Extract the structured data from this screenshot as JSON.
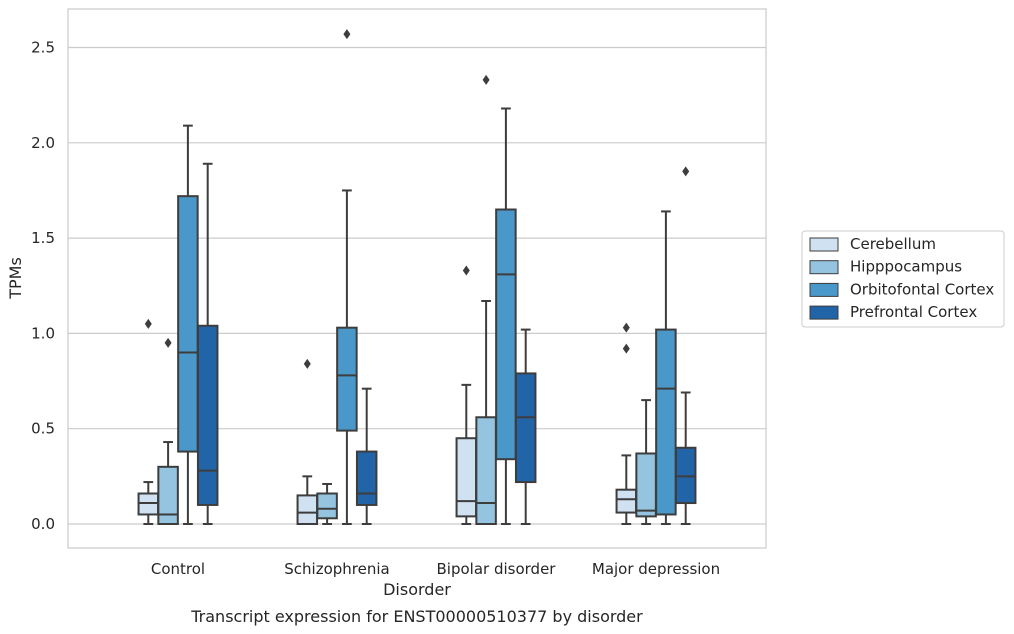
{
  "chart_data": {
    "type": "box",
    "title": "",
    "caption": "Transcript expression for ENST00000510377 by disorder",
    "xlabel": "Disorder",
    "ylabel": "TPMs",
    "ylim": [
      -0.13,
      2.7
    ],
    "yticks": [
      "0.0",
      "0.5",
      "1.0",
      "1.5",
      "2.0",
      "2.5"
    ],
    "yticks_values": [
      0.0,
      0.5,
      1.0,
      1.5,
      2.0,
      2.5
    ],
    "grid": "horizontal",
    "legend_position": "right",
    "categories": [
      "Control",
      "Schizophrenia",
      "Bipolar disorder",
      "Major depression"
    ],
    "series": [
      {
        "name": "Cerebellum",
        "color": "#d0e1f2",
        "boxes": [
          {
            "whislo": 0.0,
            "q1": 0.05,
            "med": 0.11,
            "q3": 0.16,
            "whishi": 0.22,
            "fliers": [
              1.05
            ]
          },
          {
            "whislo": 0.0,
            "q1": 0.0,
            "med": 0.06,
            "q3": 0.15,
            "whishi": 0.25,
            "fliers": [
              0.84
            ]
          },
          {
            "whislo": 0.0,
            "q1": 0.04,
            "med": 0.12,
            "q3": 0.45,
            "whishi": 0.73,
            "fliers": [
              1.33
            ]
          },
          {
            "whislo": 0.0,
            "q1": 0.06,
            "med": 0.13,
            "q3": 0.18,
            "whishi": 0.36,
            "fliers": [
              0.92,
              1.03
            ]
          }
        ]
      },
      {
        "name": "Hipppocampus",
        "color": "#94c4df",
        "boxes": [
          {
            "whislo": 0.0,
            "q1": 0.0,
            "med": 0.05,
            "q3": 0.3,
            "whishi": 0.43,
            "fliers": [
              0.95
            ]
          },
          {
            "whislo": 0.0,
            "q1": 0.03,
            "med": 0.08,
            "q3": 0.16,
            "whishi": 0.21,
            "fliers": []
          },
          {
            "whislo": 0.0,
            "q1": 0.0,
            "med": 0.11,
            "q3": 0.56,
            "whishi": 1.17,
            "fliers": [
              2.33
            ]
          },
          {
            "whislo": 0.0,
            "q1": 0.04,
            "med": 0.07,
            "q3": 0.37,
            "whishi": 0.65,
            "fliers": []
          }
        ]
      },
      {
        "name": "Orbitofontal Cortex",
        "color": "#4a98c9",
        "boxes": [
          {
            "whislo": 0.0,
            "q1": 0.38,
            "med": 0.9,
            "q3": 1.72,
            "whishi": 2.09,
            "fliers": []
          },
          {
            "whislo": 0.0,
            "q1": 0.49,
            "med": 0.78,
            "q3": 1.03,
            "whishi": 1.75,
            "fliers": [
              2.57
            ]
          },
          {
            "whislo": 0.0,
            "q1": 0.34,
            "med": 1.31,
            "q3": 1.65,
            "whishi": 2.18,
            "fliers": []
          },
          {
            "whislo": 0.0,
            "q1": 0.05,
            "med": 0.71,
            "q3": 1.02,
            "whishi": 1.64,
            "fliers": []
          }
        ]
      },
      {
        "name": "Prefrontal Cortex",
        "color": "#2264a8",
        "boxes": [
          {
            "whislo": 0.0,
            "q1": 0.1,
            "med": 0.28,
            "q3": 1.04,
            "whishi": 1.89,
            "fliers": []
          },
          {
            "whislo": 0.0,
            "q1": 0.1,
            "med": 0.16,
            "q3": 0.38,
            "whishi": 0.71,
            "fliers": []
          },
          {
            "whislo": 0.0,
            "q1": 0.22,
            "med": 0.56,
            "q3": 0.79,
            "whishi": 1.02,
            "fliers": []
          },
          {
            "whislo": 0.0,
            "q1": 0.11,
            "med": 0.25,
            "q3": 0.4,
            "whishi": 0.69,
            "fliers": [
              1.85
            ]
          }
        ]
      }
    ]
  }
}
